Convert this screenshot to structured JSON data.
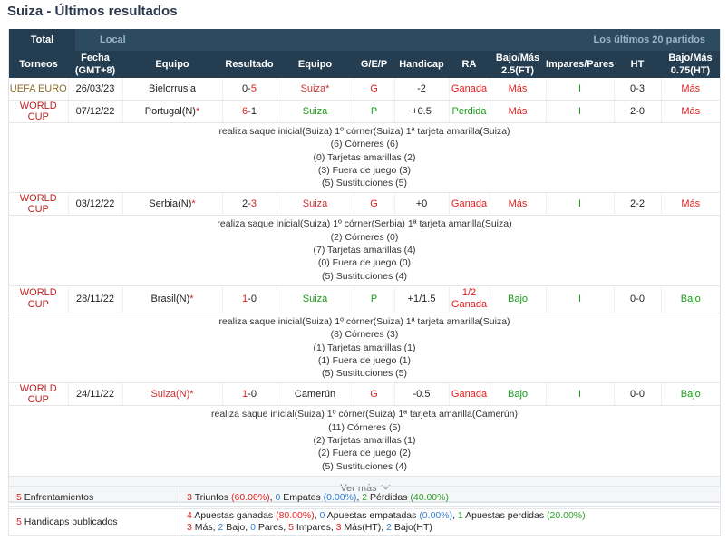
{
  "page_title": "Suiza - Últimos resultados",
  "tabs": {
    "total": "Total",
    "local": "Local",
    "last": "Los últimos 20 partidos"
  },
  "headers": {
    "torneos": "Torneos",
    "fecha": [
      "Fecha",
      "(GMT+8)"
    ],
    "equipo1": "Equipo",
    "resultado": "Resultado",
    "equipo2": "Equipo",
    "gep": "G/E/P",
    "handicap": "Handicap",
    "ra": "RA",
    "bajomas": [
      "Bajo/Más",
      "2.5(FT)"
    ],
    "impares": "Impares/Pares",
    "ht": "HT",
    "bajomasht": [
      "Bajo/Más",
      "0.75(HT)"
    ]
  },
  "matches": [
    {
      "event": "UEFA EURO",
      "date": "26/03/23",
      "home": "Bielorrusia",
      "home_n": "",
      "score_h": "0",
      "score_a": "5",
      "away": "Suiza",
      "away_n": "*",
      "gep": "G",
      "handicap": "-2",
      "ra": "Ganada",
      "ra2": "",
      "ou": "Más",
      "oe": "I",
      "ht": "0-3",
      "ouht": "Más"
    },
    {
      "event": "WORLD CUP",
      "date": "07/12/22",
      "home": "Portugal(N)",
      "home_n": "*",
      "score_h": "6",
      "score_a": "1",
      "away": "Suiza",
      "away_n": "",
      "gep": "P",
      "handicap": "+0.5",
      "ra": "Perdida",
      "ra2": "",
      "ou": "Más",
      "oe": "I",
      "ht": "2-0",
      "ouht": "Más",
      "details": [
        "realiza saque inicial(Suiza)   1º córner(Suiza)   1ª tarjeta amarilla(Suiza)",
        "(6) Córneres (6)",
        "(0) Tarjetas amarillas (2)",
        "(3) Fuera de juego (3)",
        "(5) Sustituciones (5)"
      ]
    },
    {
      "event": "WORLD CUP",
      "date": "03/12/22",
      "home": "Serbia(N)",
      "home_n": "*",
      "score_h": "2",
      "score_a": "3",
      "away": "Suiza",
      "away_n": "",
      "gep": "G",
      "handicap": "+0",
      "ra": "Ganada",
      "ra2": "",
      "ou": "Más",
      "oe": "I",
      "ht": "2-2",
      "ouht": "Más",
      "details": [
        "realiza saque inicial(Suiza)   1º córner(Serbia)   1ª tarjeta amarilla(Suiza)",
        "(2) Córneres (0)",
        "(7) Tarjetas amarillas (4)",
        "(0) Fuera de juego (0)",
        "(5) Sustituciones (4)"
      ]
    },
    {
      "event": "WORLD CUP",
      "date": "28/11/22",
      "home": "Brasil(N)",
      "home_n": "*",
      "score_h": "1",
      "score_a": "0",
      "away": "Suiza",
      "away_n": "",
      "gep": "P",
      "handicap": "+1/1.5",
      "ra": "1/2",
      "ra2": "Ganada",
      "ou": "Bajo",
      "oe": "I",
      "ht": "0-0",
      "ouht": "Bajo",
      "details": [
        "realiza saque inicial(Suiza)   1º córner(Suiza)   1ª tarjeta amarilla(Suiza)",
        "(8) Córneres (3)",
        "(1) Tarjetas amarillas (1)",
        "(1) Fuera de juego (1)",
        "(5) Sustituciones (5)"
      ]
    },
    {
      "event": "WORLD CUP",
      "date": "24/11/22",
      "home": "Suiza(N)",
      "home_n": "*",
      "score_h": "1",
      "score_a": "0",
      "away": "Camerún",
      "away_n": "",
      "gep": "G",
      "handicap": "-0.5",
      "ra": "Ganada",
      "ra2": "",
      "ou": "Bajo",
      "oe": "I",
      "ht": "0-0",
      "ouht": "Bajo",
      "details": [
        "realiza saque inicial(Suiza)   1º córner(Suiza)   1ª tarjeta amarilla(Camerún)",
        "(11) Córneres (5)",
        "(2) Tarjetas amarillas (1)",
        "(2) Fuera de juego (2)",
        "(5) Sustituciones (4)"
      ]
    }
  ],
  "ver_mas": "Ver más",
  "summary": {
    "enf_count": "5",
    "enf_label": "Enfrentamientos",
    "w_n": "3",
    "w_lbl": "Triunfos",
    "w_p": "(60.00%)",
    "d_n": "0",
    "d_lbl": "Empates",
    "d_p": "(0.00%)",
    "l_n": "2",
    "l_lbl": "Pérdidas",
    "l_p": "(40.00%)",
    "hc_count": "5",
    "hc_label": "Handicaps publicados",
    "aw_n": "4",
    "aw_lbl": "Apuestas ganadas",
    "aw_p": "(80.00%)",
    "ad_n": "0",
    "ad_lbl": "Apuestas empatadas",
    "ad_p": "(0.00%)",
    "al_n": "1",
    "al_lbl": "Apuestas perdidas",
    "al_p": "(20.00%)",
    "mas_n": "3",
    "mas_lbl": "Más",
    "bajo_n": "2",
    "bajo_lbl": "Bajo",
    "pares_n": "0",
    "pares_lbl": "Pares",
    "imp_n": "5",
    "imp_lbl": "Impares",
    "masht_n": "3",
    "masht_lbl": "Más(HT)",
    "bajoht_n": "2",
    "bajoht_lbl": "Bajo(HT)"
  },
  "colors": {
    "header_bg": "#243d50",
    "win": "#e02020",
    "loss": "#1a9a1a",
    "draw": "#2f7fd6"
  }
}
